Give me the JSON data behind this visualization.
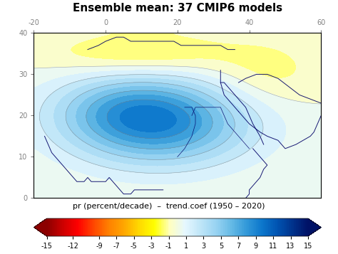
{
  "title": "Ensemble mean: 37 CMIP6 models",
  "colorbar_label": "pr (percent/decade)  –  trend.coef (1950 – 2020)",
  "colorbar_ticks": [
    -15,
    -12,
    -9,
    -7,
    -5,
    -3,
    -1,
    1,
    3,
    5,
    7,
    9,
    11,
    13,
    15
  ],
  "vmin": -15,
  "vmax": 15,
  "lon_min": -20,
  "lon_max": 60,
  "lat_min": 0,
  "lat_max": 40,
  "top_axis_ticks": [
    -20,
    0,
    20,
    40,
    60
  ],
  "left_axis_ticks": [
    0,
    10,
    20,
    30,
    40
  ],
  "background_color": "#f5f5f5",
  "map_background": "#ffffee",
  "figsize": [
    4.74,
    3.57
  ],
  "dpi": 100,
  "colors_red_to_blue": [
    "#8b0000",
    "#cc0000",
    "#ff0000",
    "#ff4500",
    "#ff7f00",
    "#ffa500",
    "#ffcc00",
    "#ffff00",
    "#ffffcc",
    "#e0f0ff",
    "#b0d8f0",
    "#80c0e8",
    "#50a8e0",
    "#2090d8",
    "#0070cc",
    "#0050aa",
    "#003388",
    "#001166"
  ]
}
